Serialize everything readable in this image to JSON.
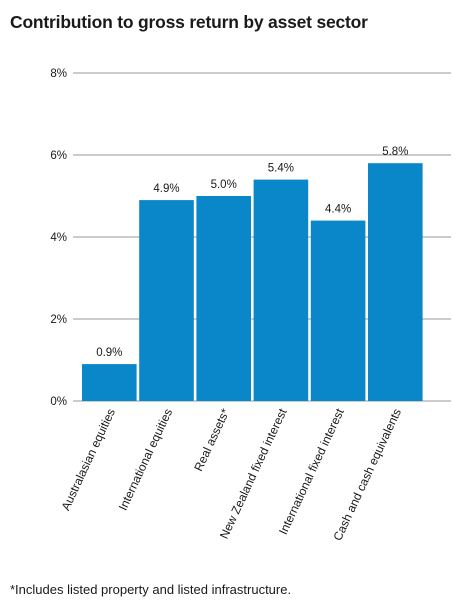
{
  "title": "Contribution to gross return by asset sector",
  "footnote": "*Includes listed property and listed infrastructure.",
  "colors": {
    "bar": "#0a87c8",
    "grid": "#999999",
    "text": "#1a1a1a"
  },
  "chart_data": {
    "type": "bar",
    "title": "Contribution to gross return by asset sector",
    "categories": [
      "Australasian equities",
      "International equities",
      "Real assets*",
      "New Zealand fixed interest",
      "International fixed interest",
      "Cash and cash equivalents"
    ],
    "values": [
      0.9,
      4.9,
      5.0,
      5.4,
      4.4,
      5.8
    ],
    "data_labels": [
      "0.9%",
      "4.9%",
      "5.0%",
      "5.4%",
      "4.4%",
      "5.8%"
    ],
    "yticks": [
      0,
      2,
      4,
      6,
      8
    ],
    "ytick_labels": [
      "0%",
      "2%",
      "4%",
      "6%",
      "8%"
    ],
    "ylim": [
      0,
      8
    ],
    "xlabel": "",
    "ylabel": "",
    "grid": true,
    "legend": "none"
  }
}
